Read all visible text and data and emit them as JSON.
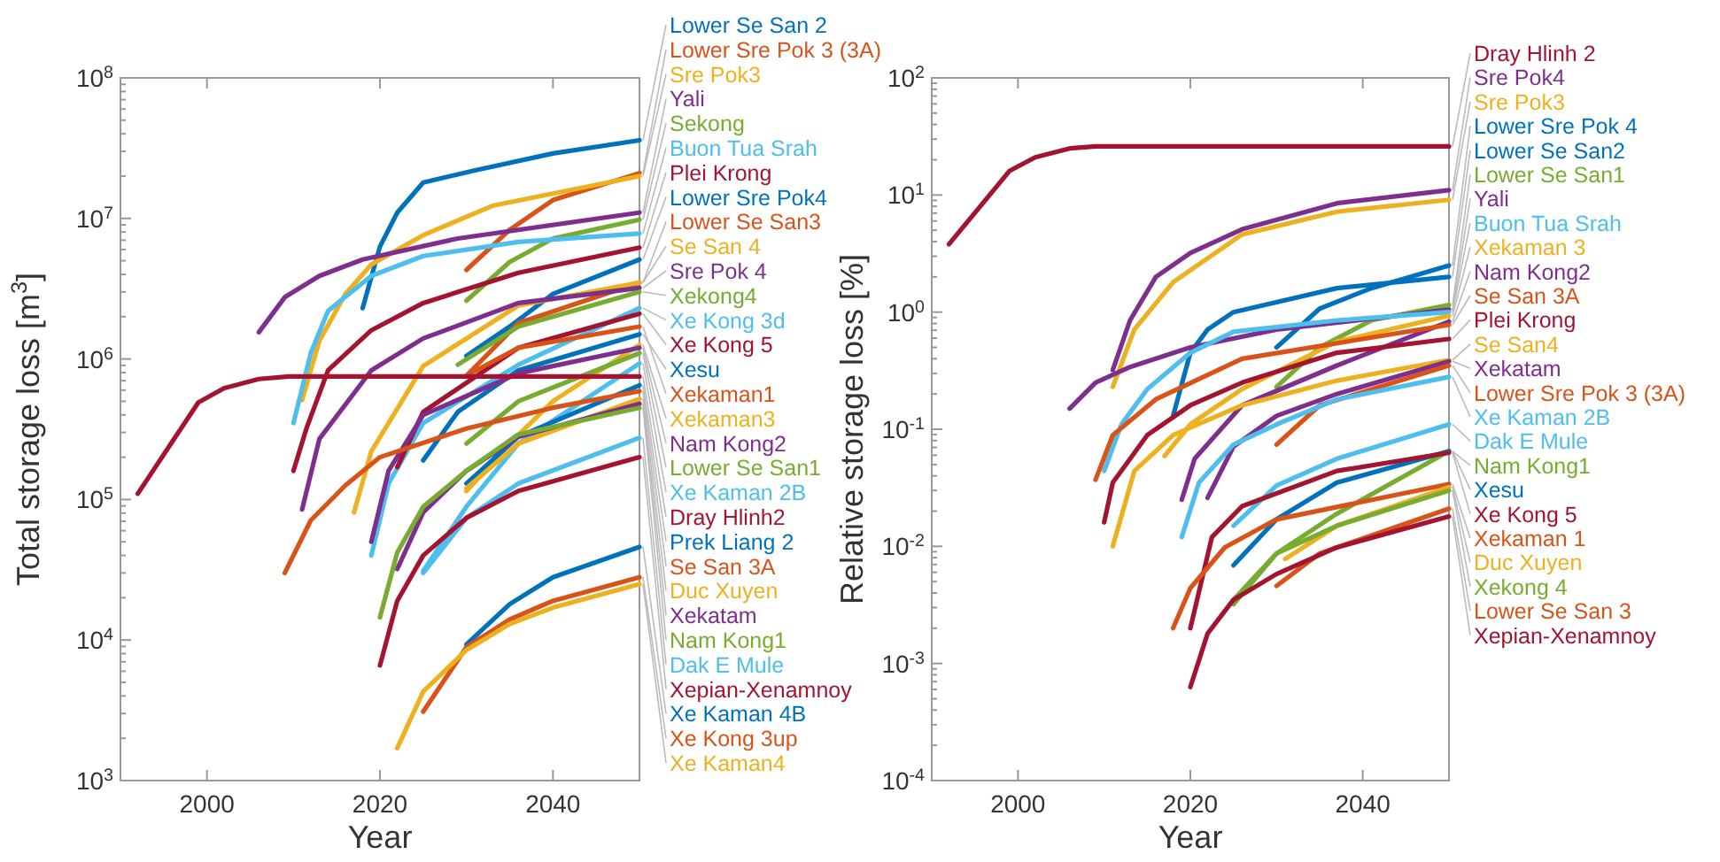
{
  "chart_data": [
    {
      "type": "line",
      "xlabel": "Year",
      "ylabel": "Total storage loss [m$^{3}$]",
      "log": "y",
      "grid": false,
      "marker": "none",
      "line_style": "solid",
      "xlim": [
        1990,
        2050
      ],
      "xticks": [
        2000,
        2020,
        2040
      ],
      "ylim": [
        1000,
        100000000
      ],
      "yticks": [
        {
          "value": 1000,
          "label": "10$^{3}$"
        },
        {
          "value": 10000,
          "label": "10$^{4}$"
        },
        {
          "value": 100000,
          "label": "10$^{5}$"
        },
        {
          "value": 1000000,
          "label": "10$^{6}$"
        },
        {
          "value": 10000000,
          "label": "10$^{7}$"
        },
        {
          "value": 100000000,
          "label": "10$^{8}$"
        }
      ],
      "series": [
        {
          "name": "Lower Se San 2",
          "color": "#0072bd",
          "x": [
            2018,
            2020,
            2022,
            2025,
            2031,
            2040,
            2050
          ],
          "values": [
            2300000,
            6300000,
            11000000,
            18000000,
            22000000,
            29000000,
            36000000
          ]
        },
        {
          "name": "Lower Sre Pok 3 (3A)",
          "color": "#d95319",
          "x": [
            2030,
            2035,
            2040,
            2050
          ],
          "values": [
            4300000,
            8300000,
            13500000,
            21000000
          ]
        },
        {
          "name": "Sre Pok3",
          "color": "#edb120",
          "x": [
            2011,
            2013,
            2016,
            2019,
            2025,
            2033,
            2050
          ],
          "values": [
            510000,
            1350000,
            2900000,
            4700000,
            7600000,
            12300000,
            20000000
          ]
        },
        {
          "name": "Yali",
          "color": "#7e2f8e",
          "x": [
            2006,
            2009,
            2013,
            2018,
            2029,
            2050
          ],
          "values": [
            1550000,
            2750000,
            3900000,
            5100000,
            7200000,
            11000000
          ]
        },
        {
          "name": "Sekong",
          "color": "#77ac30",
          "x": [
            2030,
            2035,
            2040,
            2050
          ],
          "values": [
            2600000,
            4900000,
            7200000,
            9800000
          ]
        },
        {
          "name": "Buon Tua Srah",
          "color": "#4dbeee",
          "x": [
            2010,
            2012,
            2014,
            2019,
            2025,
            2036,
            2050
          ],
          "values": [
            350000,
            1100000,
            2200000,
            3900000,
            5400000,
            6800000,
            7800000
          ]
        },
        {
          "name": "Plei Krong",
          "color": "#a2142f",
          "x": [
            2010,
            2011.5,
            2014,
            2019,
            2025,
            2036,
            2050
          ],
          "values": [
            160000,
            320000,
            830000,
            1600000,
            2500000,
            4100000,
            6200000
          ]
        },
        {
          "name": "Lower Sre Pok4",
          "color": "#0072bd",
          "x": [
            2030,
            2035,
            2040,
            2050
          ],
          "values": [
            1050000,
            1700000,
            2900000,
            5100000
          ]
        },
        {
          "name": "Lower Se San3",
          "color": "#d95319",
          "x": [
            2030,
            2036,
            2050
          ],
          "values": [
            760000,
            1800000,
            3500000
          ]
        },
        {
          "name": "Se San 4",
          "color": "#edb120",
          "x": [
            2017,
            2019,
            2025,
            2036,
            2050
          ],
          "values": [
            81000,
            220000,
            890000,
            2400000,
            3500000
          ]
        },
        {
          "name": "Sre Pok 4",
          "color": "#7e2f8e",
          "x": [
            2011,
            2013,
            2019,
            2025,
            2036,
            2050
          ],
          "values": [
            85000,
            270000,
            830000,
            1400000,
            2500000,
            3200000
          ]
        },
        {
          "name": "Xekong4",
          "color": "#77ac30",
          "x": [
            2029,
            2036,
            2050
          ],
          "values": [
            910000,
            1700000,
            3000000
          ]
        },
        {
          "name": "Xe Kong 3d",
          "color": "#4dbeee",
          "x": [
            2019,
            2021,
            2025,
            2036,
            2050
          ],
          "values": [
            40000,
            130000,
            350000,
            910000,
            2300000
          ]
        },
        {
          "name": "Xe Kong 5",
          "color": "#a2142f",
          "x": [
            2022,
            2025,
            2036,
            2050
          ],
          "values": [
            170000,
            420000,
            1200000,
            2100000
          ]
        },
        {
          "name": "Xesu",
          "color": "#0072bd",
          "x": [
            2025,
            2029,
            2036,
            2050
          ],
          "values": [
            190000,
            420000,
            830000,
            1500000
          ]
        },
        {
          "name": "Xekaman1",
          "color": "#d95319",
          "x": [
            2030,
            2036,
            2050
          ],
          "values": [
            760000,
            1200000,
            1700000
          ]
        },
        {
          "name": "Xekaman3",
          "color": "#edb120",
          "x": [
            2030,
            2035,
            2040,
            2050
          ],
          "values": [
            115000,
            250000,
            500000,
            1260000
          ]
        },
        {
          "name": "Nam Kong2",
          "color": "#7e2f8e",
          "x": [
            2019,
            2021,
            2025,
            2036,
            2050
          ],
          "values": [
            50000,
            160000,
            400000,
            790000,
            1200000
          ]
        },
        {
          "name": "Lower Se San1",
          "color": "#77ac30",
          "x": [
            2030,
            2036,
            2050
          ],
          "values": [
            250000,
            500000,
            1100000
          ]
        },
        {
          "name": "Xe Kaman 2B",
          "color": "#4dbeee",
          "x": [
            2025,
            2030,
            2036,
            2050
          ],
          "values": [
            31000,
            89000,
            250000,
            930000
          ]
        },
        {
          "name": "Dray Hlinh2",
          "color": "#a2142f",
          "x": [
            1992,
            1999,
            2002,
            2006,
            2009.5,
            2050
          ],
          "values": [
            110000,
            490000,
            620000,
            720000,
            750000,
            750000
          ]
        },
        {
          "name": "Prek Liang 2",
          "color": "#0072bd",
          "x": [
            2030,
            2036,
            2050
          ],
          "values": [
            130000,
            280000,
            650000
          ]
        },
        {
          "name": "Se San 3A",
          "color": "#d95319",
          "x": [
            2009,
            2012,
            2016,
            2020,
            2030,
            2040,
            2050
          ],
          "values": [
            30000,
            71000,
            126000,
            200000,
            320000,
            450000,
            590000
          ]
        },
        {
          "name": "Duc Xuyen",
          "color": "#edb120",
          "x": [
            2030,
            2036,
            2050
          ],
          "values": [
            120000,
            250000,
            520000
          ]
        },
        {
          "name": "Xekatam",
          "color": "#7e2f8e",
          "x": [
            2022,
            2025,
            2030,
            2036,
            2050
          ],
          "values": [
            32000,
            81000,
            160000,
            280000,
            480000
          ]
        },
        {
          "name": "Nam Kong1",
          "color": "#77ac30",
          "x": [
            2020,
            2022,
            2025,
            2030,
            2036,
            2050
          ],
          "values": [
            14500,
            42000,
            89000,
            160000,
            290000,
            450000
          ]
        },
        {
          "name": "Dak E Mule",
          "color": "#4dbeee",
          "x": [
            2025,
            2030,
            2036,
            2050
          ],
          "values": [
            30000,
            74000,
            130000,
            275000
          ]
        },
        {
          "name": "Xepian-Xenamnoy",
          "color": "#a2142f",
          "x": [
            2020,
            2022,
            2025,
            2030,
            2036,
            2050
          ],
          "values": [
            6600,
            19000,
            40000,
            74000,
            115000,
            200000
          ]
        },
        {
          "name": "Xe Kaman 4B",
          "color": "#0072bd",
          "x": [
            2030,
            2035,
            2040,
            2050
          ],
          "values": [
            9300,
            18000,
            28000,
            46000
          ]
        },
        {
          "name": "Xe Kong 3up",
          "color": "#d95319",
          "x": [
            2025,
            2030,
            2035,
            2040,
            2050
          ],
          "values": [
            3100,
            8900,
            14000,
            19000,
            28000
          ]
        },
        {
          "name": "Xe Kaman4",
          "color": "#edb120",
          "x": [
            2022,
            2025,
            2030,
            2035,
            2040,
            2050
          ],
          "values": [
            1700,
            4300,
            8500,
            13000,
            17000,
            25000
          ]
        }
      ]
    },
    {
      "type": "line",
      "xlabel": "Year",
      "ylabel": "Relative storage loss [%]",
      "log": "y",
      "grid": false,
      "marker": "none",
      "line_style": "solid",
      "xlim": [
        1990,
        2050
      ],
      "xticks": [
        2000,
        2020,
        2040
      ],
      "ylim": [
        0.0001,
        100
      ],
      "yticks": [
        {
          "value": 0.0001,
          "label": "10$^{-4}$"
        },
        {
          "value": 0.001,
          "label": "10$^{-3}$"
        },
        {
          "value": 0.01,
          "label": "10$^{-2}$"
        },
        {
          "value": 0.1,
          "label": "10$^{-1}$"
        },
        {
          "value": 1,
          "label": "10$^{0}$"
        },
        {
          "value": 10,
          "label": "10$^{1}$"
        },
        {
          "value": 100,
          "label": "10$^{2}$"
        }
      ],
      "series": [
        {
          "name": "Dray Hlinh 2",
          "color": "#a2142f",
          "x": [
            1992,
            1999,
            2002,
            2006,
            2009,
            2050
          ],
          "values": [
            3.8,
            16,
            21,
            25,
            26,
            26
          ]
        },
        {
          "name": "Sre Pok4",
          "color": "#7e2f8e",
          "x": [
            2011,
            2013,
            2016,
            2020,
            2026,
            2037,
            2050
          ],
          "values": [
            0.32,
            0.85,
            2.0,
            3.2,
            5.1,
            8.5,
            11
          ]
        },
        {
          "name": "Sre Pok3",
          "color": "#edb120",
          "x": [
            2011,
            2013.5,
            2018,
            2026,
            2037,
            2050
          ],
          "values": [
            0.23,
            0.71,
            1.8,
            4.6,
            7.2,
            9.1
          ]
        },
        {
          "name": "Lower Sre Pok 4",
          "color": "#0072bd",
          "x": [
            2030,
            2035,
            2041,
            2050
          ],
          "values": [
            0.5,
            1.07,
            1.6,
            2.5
          ]
        },
        {
          "name": "Lower Se San2",
          "color": "#0072bd",
          "x": [
            2018,
            2020,
            2022,
            2025,
            2037,
            2050
          ],
          "values": [
            0.13,
            0.45,
            0.71,
            1.0,
            1.6,
            2.0
          ]
        },
        {
          "name": "Lower Se San1",
          "color": "#77ac30",
          "x": [
            2030,
            2035,
            2041,
            2050
          ],
          "values": [
            0.23,
            0.5,
            0.85,
            1.15
          ]
        },
        {
          "name": "Yali",
          "color": "#7e2f8e",
          "x": [
            2006,
            2009,
            2013,
            2020,
            2030,
            2050
          ],
          "values": [
            0.15,
            0.25,
            0.34,
            0.5,
            0.71,
            1.05
          ]
        },
        {
          "name": "Buon Tua Srah",
          "color": "#4dbeee",
          "x": [
            2010,
            2012,
            2015,
            2020,
            2025,
            2037,
            2050
          ],
          "values": [
            0.044,
            0.11,
            0.22,
            0.45,
            0.68,
            0.85,
            1.0
          ]
        },
        {
          "name": "Xekaman  3",
          "color": "#edb120",
          "x": [
            2017,
            2020,
            2026,
            2037,
            2050
          ],
          "values": [
            0.059,
            0.11,
            0.22,
            0.56,
            0.93
          ]
        },
        {
          "name": "Nam Kong2",
          "color": "#7e2f8e",
          "x": [
            2019,
            2020.5,
            2026,
            2037,
            2050
          ],
          "values": [
            0.025,
            0.056,
            0.16,
            0.35,
            0.83
          ]
        },
        {
          "name": "Se San 3A",
          "color": "#d95319",
          "x": [
            2009,
            2011,
            2016,
            2026,
            2050
          ],
          "values": [
            0.037,
            0.089,
            0.18,
            0.4,
            0.78
          ]
        },
        {
          "name": "Plei Krong",
          "color": "#a2142f",
          "x": [
            2010,
            2011,
            2015,
            2020,
            2026,
            2037,
            2050
          ],
          "values": [
            0.016,
            0.035,
            0.089,
            0.16,
            0.25,
            0.45,
            0.59
          ]
        },
        {
          "name": "Se San4",
          "color": "#edb120",
          "x": [
            2011,
            2013.5,
            2018,
            2026,
            2037,
            2050
          ],
          "values": [
            0.01,
            0.044,
            0.089,
            0.16,
            0.26,
            0.39
          ]
        },
        {
          "name": "Xekatam",
          "color": "#7e2f8e",
          "x": [
            2022,
            2025,
            2030,
            2037,
            2050
          ],
          "values": [
            0.026,
            0.071,
            0.13,
            0.2,
            0.38
          ]
        },
        {
          "name": "Lower Sre Pok 3 (3A)",
          "color": "#d95319",
          "x": [
            2030,
            2035,
            2050
          ],
          "values": [
            0.074,
            0.16,
            0.35
          ]
        },
        {
          "name": "Xe Kaman 2B",
          "color": "#4dbeee",
          "x": [
            2019,
            2021,
            2025,
            2030,
            2037,
            2050
          ],
          "values": [
            0.012,
            0.035,
            0.074,
            0.11,
            0.18,
            0.28
          ]
        },
        {
          "name": "Dak E Mule",
          "color": "#4dbeee",
          "x": [
            2025,
            2030,
            2037,
            2050
          ],
          "values": [
            0.015,
            0.033,
            0.056,
            0.11
          ]
        },
        {
          "name": "Nam Kong1",
          "color": "#77ac30",
          "x": [
            2025,
            2030,
            2037,
            2050
          ],
          "values": [
            0.0035,
            0.0087,
            0.019,
            0.065
          ]
        },
        {
          "name": "Xesu",
          "color": "#0072bd",
          "x": [
            2025,
            2030,
            2037,
            2050
          ],
          "values": [
            0.0069,
            0.017,
            0.035,
            0.065
          ]
        },
        {
          "name": "Xe Kong 5",
          "color": "#a2142f",
          "x": [
            2020,
            2022.5,
            2026,
            2037,
            2050
          ],
          "values": [
            0.002,
            0.012,
            0.022,
            0.044,
            0.063
          ]
        },
        {
          "name": "Xekaman 1",
          "color": "#d95319",
          "x": [
            2018,
            2020,
            2024,
            2030,
            2050
          ],
          "values": [
            0.002,
            0.0044,
            0.0098,
            0.017,
            0.034
          ]
        },
        {
          "name": "Duc Xuyen",
          "color": "#edb120",
          "x": [
            2031,
            2037,
            2050
          ],
          "values": [
            0.0078,
            0.015,
            0.032
          ]
        },
        {
          "name": "Xekong 4",
          "color": "#77ac30",
          "x": [
            2025,
            2030,
            2037,
            2050
          ],
          "values": [
            0.0032,
            0.0087,
            0.015,
            0.03
          ]
        },
        {
          "name": "Lower Se San 3",
          "color": "#d95319",
          "x": [
            2030,
            2035,
            2050
          ],
          "values": [
            0.0046,
            0.0087,
            0.021
          ]
        },
        {
          "name": "Xepian-Xenamnoy",
          "color": "#a2142f",
          "x": [
            2020,
            2022,
            2025,
            2030,
            2037,
            2050
          ],
          "values": [
            0.00063,
            0.0018,
            0.0035,
            0.0058,
            0.0098,
            0.018
          ]
        }
      ]
    }
  ]
}
